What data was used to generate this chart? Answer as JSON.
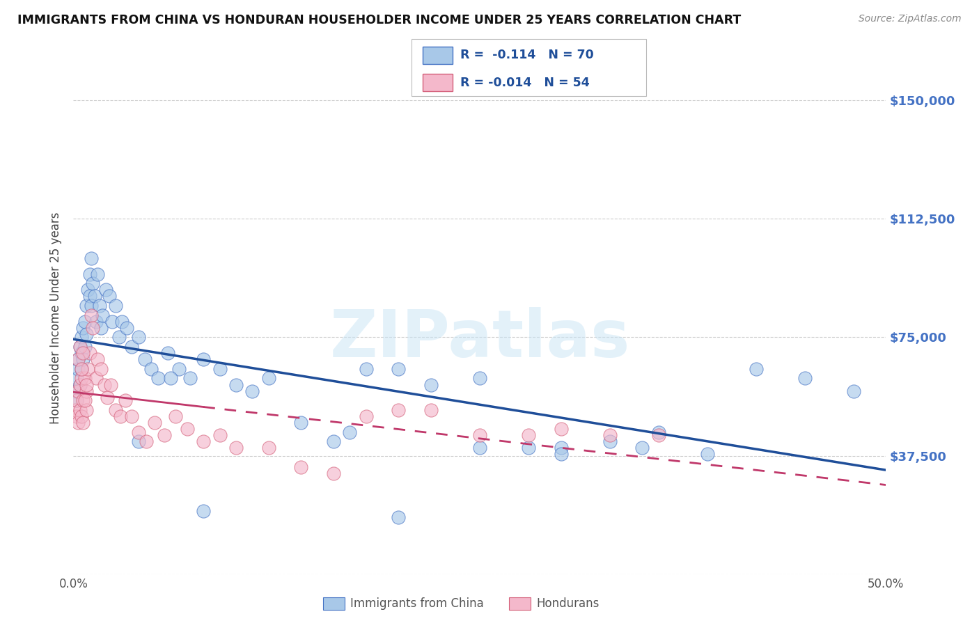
{
  "title": "IMMIGRANTS FROM CHINA VS HONDURAN HOUSEHOLDER INCOME UNDER 25 YEARS CORRELATION CHART",
  "source": "Source: ZipAtlas.com",
  "ylabel": "Householder Income Under 25 years",
  "yticks": [
    0,
    37500,
    75000,
    112500,
    150000
  ],
  "ytick_labels": [
    "",
    "$37,500",
    "$75,000",
    "$112,500",
    "$150,000"
  ],
  "xlim": [
    0.0,
    0.5
  ],
  "ylim": [
    0,
    162000
  ],
  "legend1_label": "R =  -0.114   N = 70",
  "legend2_label": "R = -0.014   N = 54",
  "legend_bottom1": "Immigrants from China",
  "legend_bottom2": "Hondurans",
  "blue_color": "#a8c8e8",
  "blue_edge_color": "#4472c4",
  "blue_line_color": "#1f4e99",
  "pink_color": "#f4b8cb",
  "pink_edge_color": "#d4607a",
  "pink_line_color": "#c0386a",
  "right_axis_color": "#4472c4",
  "grid_color": "#cccccc",
  "blue_x": [
    0.001,
    0.002,
    0.002,
    0.003,
    0.003,
    0.004,
    0.004,
    0.005,
    0.005,
    0.005,
    0.006,
    0.006,
    0.007,
    0.007,
    0.008,
    0.008,
    0.009,
    0.01,
    0.01,
    0.011,
    0.011,
    0.012,
    0.013,
    0.014,
    0.015,
    0.016,
    0.017,
    0.018,
    0.02,
    0.022,
    0.024,
    0.026,
    0.028,
    0.03,
    0.033,
    0.036,
    0.04,
    0.044,
    0.048,
    0.052,
    0.058,
    0.065,
    0.072,
    0.08,
    0.09,
    0.1,
    0.11,
    0.12,
    0.14,
    0.16,
    0.18,
    0.2,
    0.22,
    0.25,
    0.28,
    0.3,
    0.33,
    0.36,
    0.39,
    0.42,
    0.45,
    0.48,
    0.25,
    0.3,
    0.35,
    0.17,
    0.2,
    0.08,
    0.06,
    0.04
  ],
  "blue_y": [
    58000,
    62000,
    55000,
    65000,
    68000,
    72000,
    60000,
    70000,
    65000,
    75000,
    68000,
    78000,
    72000,
    80000,
    76000,
    85000,
    90000,
    88000,
    95000,
    100000,
    85000,
    92000,
    88000,
    80000,
    95000,
    85000,
    78000,
    82000,
    90000,
    88000,
    80000,
    85000,
    75000,
    80000,
    78000,
    72000,
    75000,
    68000,
    65000,
    62000,
    70000,
    65000,
    62000,
    68000,
    65000,
    60000,
    58000,
    62000,
    48000,
    42000,
    65000,
    65000,
    60000,
    62000,
    40000,
    40000,
    42000,
    45000,
    38000,
    65000,
    62000,
    58000,
    40000,
    38000,
    40000,
    45000,
    18000,
    20000,
    62000,
    42000
  ],
  "pink_x": [
    0.001,
    0.002,
    0.002,
    0.003,
    0.003,
    0.004,
    0.004,
    0.005,
    0.005,
    0.006,
    0.006,
    0.007,
    0.008,
    0.008,
    0.009,
    0.01,
    0.011,
    0.012,
    0.014,
    0.015,
    0.017,
    0.019,
    0.021,
    0.023,
    0.026,
    0.029,
    0.032,
    0.036,
    0.04,
    0.045,
    0.05,
    0.056,
    0.063,
    0.07,
    0.08,
    0.09,
    0.1,
    0.12,
    0.14,
    0.16,
    0.18,
    0.2,
    0.22,
    0.25,
    0.28,
    0.3,
    0.33,
    0.36,
    0.003,
    0.004,
    0.005,
    0.006,
    0.007,
    0.008
  ],
  "pink_y": [
    52000,
    50000,
    55000,
    48000,
    58000,
    60000,
    52000,
    62000,
    50000,
    55000,
    48000,
    62000,
    58000,
    52000,
    65000,
    70000,
    82000,
    78000,
    62000,
    68000,
    65000,
    60000,
    56000,
    60000,
    52000,
    50000,
    55000,
    50000,
    45000,
    42000,
    48000,
    44000,
    50000,
    46000,
    42000,
    44000,
    40000,
    40000,
    34000,
    32000,
    50000,
    52000,
    52000,
    44000,
    44000,
    46000,
    44000,
    44000,
    68000,
    72000,
    65000,
    70000,
    55000,
    60000
  ]
}
